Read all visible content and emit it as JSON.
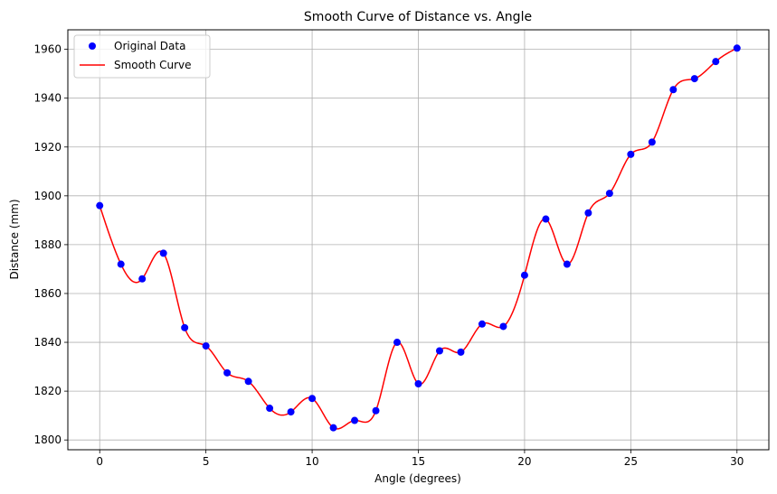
{
  "chart_data": {
    "type": "line",
    "title": "Smooth Curve of Distance vs. Angle",
    "xlabel": "Angle (degrees)",
    "ylabel": "Distance (mm)",
    "xlim": [
      -1.5,
      31.5
    ],
    "ylim": [
      1796,
      1968
    ],
    "xticks": [
      0,
      5,
      10,
      15,
      20,
      25,
      30
    ],
    "yticks": [
      1800,
      1820,
      1840,
      1860,
      1880,
      1900,
      1920,
      1940,
      1960
    ],
    "grid": true,
    "legend": "top-left",
    "x": [
      0,
      1,
      2,
      3,
      4,
      5,
      6,
      7,
      8,
      9,
      10,
      11,
      12,
      13,
      14,
      15,
      16,
      17,
      18,
      19,
      20,
      21,
      22,
      23,
      24,
      25,
      26,
      27,
      28,
      29,
      30
    ],
    "series": [
      {
        "name": "Original Data",
        "style": "markers",
        "color": "#0000ff",
        "values": [
          1896,
          1872,
          1866,
          1876.5,
          1846,
          1838.5,
          1827.5,
          1824,
          1813,
          1811.5,
          1817,
          1805,
          1808,
          1812,
          1840,
          1823,
          1836.5,
          1836,
          1847.5,
          1846.5,
          1867.5,
          1890.5,
          1872,
          1893,
          1901,
          1917,
          1922,
          1943.5,
          1948,
          1955,
          1960.5
        ]
      },
      {
        "name": "Smooth Curve",
        "style": "line",
        "color": "#ff0000",
        "values": [
          1896,
          1872,
          1866,
          1876.5,
          1846,
          1838.5,
          1827.5,
          1824,
          1813,
          1811.5,
          1817,
          1805,
          1808,
          1812,
          1840,
          1823,
          1836.5,
          1836,
          1847.5,
          1846.5,
          1867.5,
          1890.5,
          1872,
          1893,
          1901,
          1917,
          1922,
          1943.5,
          1948,
          1955,
          1960.5
        ]
      }
    ]
  }
}
